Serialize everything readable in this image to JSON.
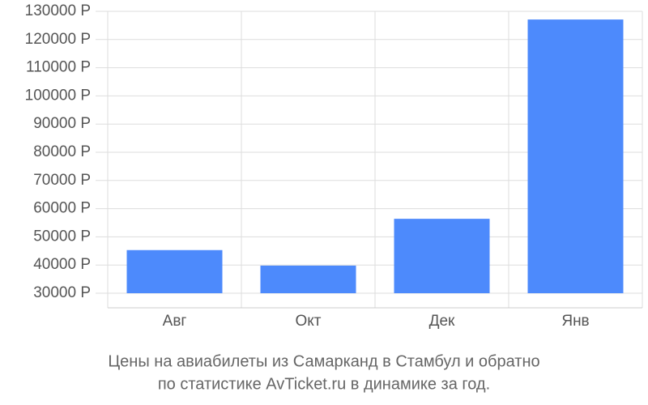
{
  "chart_data": {
    "type": "bar",
    "title": [
      "Цены на авиабилеты из Самарканд в Стамбул и обратно",
      "по статистике AvTicket.ru в динамике за год."
    ],
    "categories": [
      "Авг",
      "Окт",
      "Дек",
      "Янв"
    ],
    "values": [
      45300,
      39800,
      56400,
      127100
    ],
    "color": "#4d8afc",
    "ylim": [
      30000,
      130000
    ],
    "yticks": [
      {
        "value": 30000,
        "label": "30000 Р"
      },
      {
        "value": 40000,
        "label": "40000 Р"
      },
      {
        "value": 50000,
        "label": "50000 Р"
      },
      {
        "value": 60000,
        "label": "60000 Р"
      },
      {
        "value": 70000,
        "label": "70000 Р"
      },
      {
        "value": 80000,
        "label": "80000 Р"
      },
      {
        "value": 90000,
        "label": "90000 Р"
      },
      {
        "value": 100000,
        "label": "100000 Р"
      },
      {
        "value": 110000,
        "label": "110000 Р"
      },
      {
        "value": 120000,
        "label": "120000 Р"
      },
      {
        "value": 130000,
        "label": "130000 Р"
      }
    ],
    "grid": true
  }
}
